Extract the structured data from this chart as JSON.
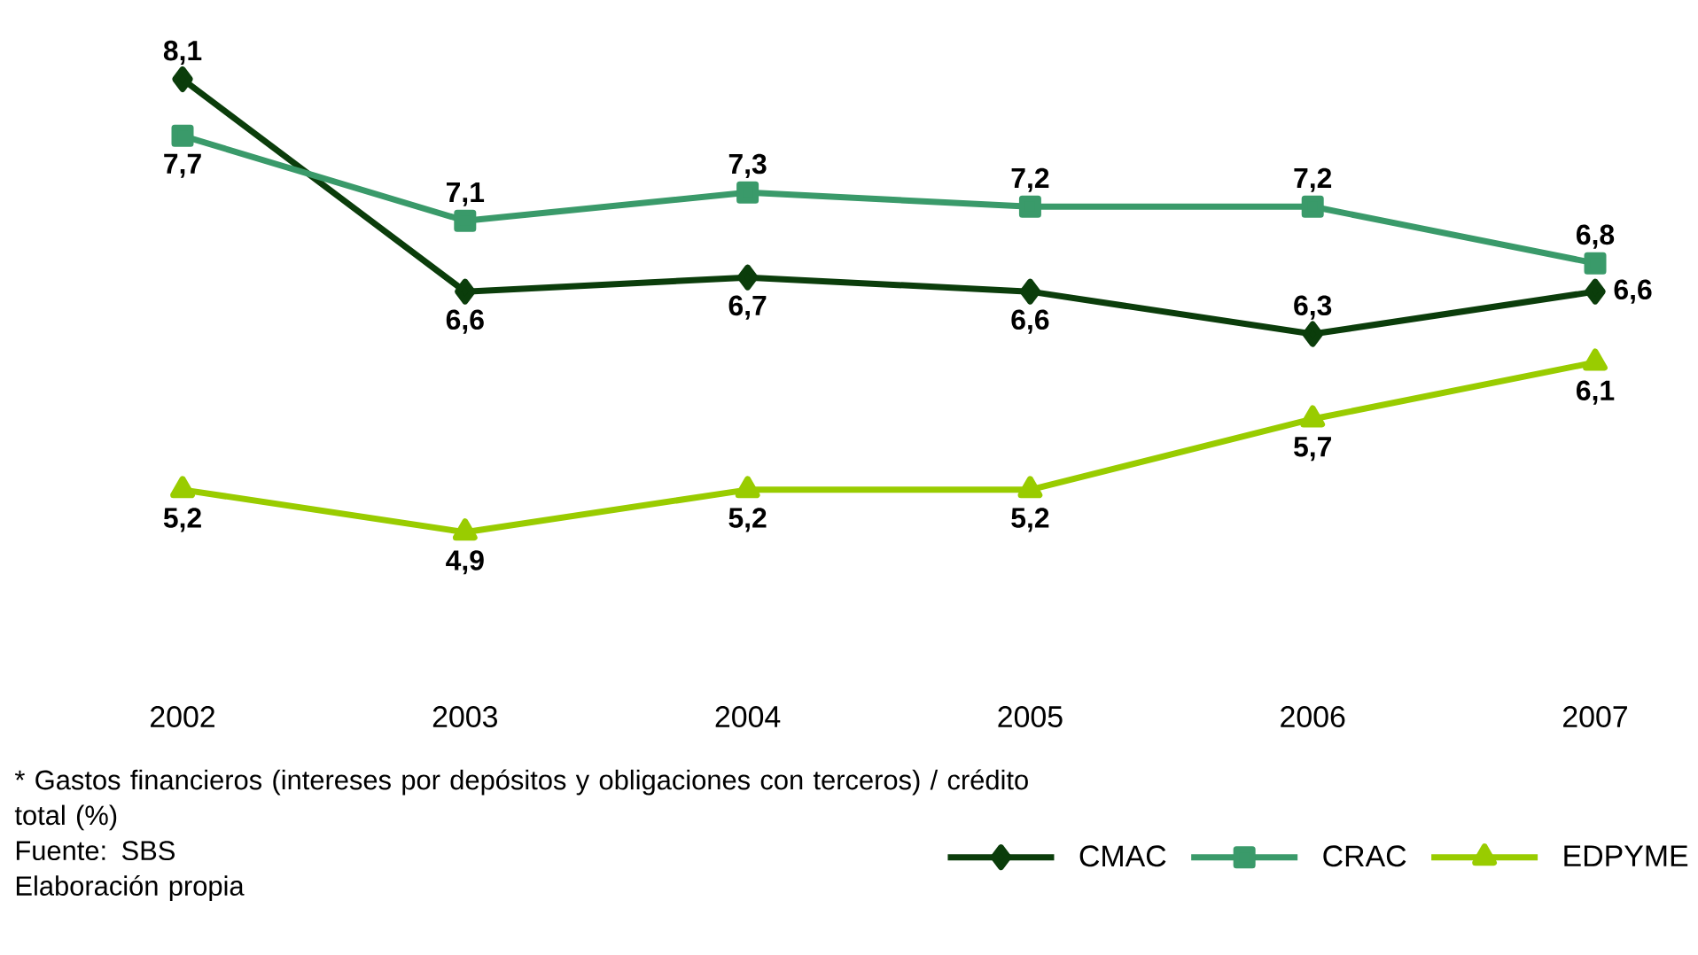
{
  "chart_data": {
    "type": "line",
    "categories": [
      "2002",
      "2003",
      "2004",
      "2005",
      "2006",
      "2007"
    ],
    "series": [
      {
        "name": "CMAC",
        "color": "#0b3d0b",
        "marker": "diamond",
        "values": [
          8.1,
          6.6,
          6.7,
          6.6,
          6.3,
          6.6
        ],
        "value_labels": [
          "8,1",
          "6,6",
          "6,7",
          "6,6",
          "6,3",
          "6,6"
        ]
      },
      {
        "name": "CRAC",
        "color": "#3a9a6a",
        "marker": "square",
        "values": [
          7.7,
          7.1,
          7.3,
          7.2,
          7.2,
          6.8
        ],
        "value_labels": [
          "7,7",
          "7,1",
          "7,3",
          "7,2",
          "7,2",
          "6,8"
        ]
      },
      {
        "name": "EDPYME",
        "color": "#99cc00",
        "marker": "triangle",
        "values": [
          5.2,
          4.9,
          5.2,
          5.2,
          5.7,
          6.1
        ],
        "value_labels": [
          "5,2",
          "4,9",
          "5,2",
          "5,2",
          "5,7",
          "6,1"
        ]
      }
    ],
    "legend": "bottom right",
    "annotations": [
      "* Gastos financieros (intereses por depósitos y obligaciones con terceros) / crédito total (%)",
      "Fuente: SBS",
      "Elaboración propia"
    ]
  }
}
